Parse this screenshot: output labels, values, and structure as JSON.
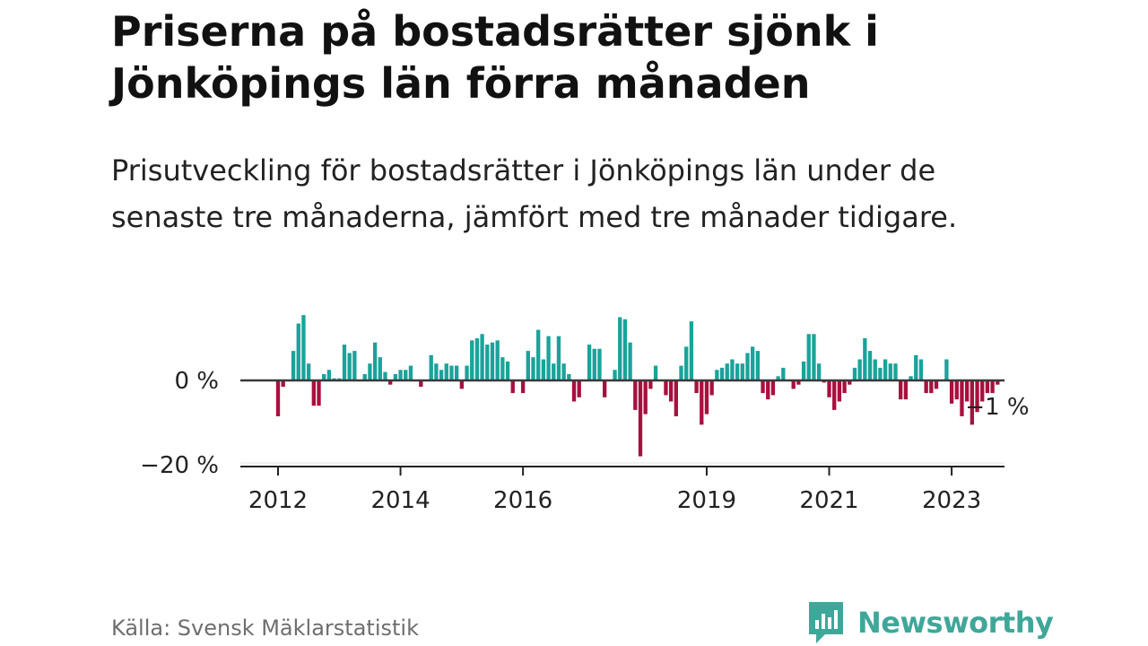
{
  "header": {
    "title": "Priserna på bostadsrätter sjönk i Jönköpings län förra månaden",
    "subtitle": "Prisutveckling för bostadsrätter i Jönköpings län under de senaste tre månaderna, jämfört med tre månader tidigare."
  },
  "footer": {
    "source": "Källa: Svensk Mäklarstatistik",
    "brand": "Newsworthy"
  },
  "colors": {
    "positive": "#1aa39a",
    "negative": "#a8103e",
    "brand": "#3fa79a"
  },
  "chart_data": {
    "type": "bar",
    "title": "",
    "xlabel": "",
    "ylabel": "",
    "ylim": [
      -20,
      15
    ],
    "yticks": [
      0,
      -20
    ],
    "ytick_labels": [
      "0 %",
      "−20 %"
    ],
    "xticks": [
      "2012",
      "2014",
      "2016",
      "2019",
      "2021",
      "2023"
    ],
    "last_value_label": "−1 %",
    "start": "2012-01",
    "values": [
      -8.5,
      -1.5,
      0,
      7,
      13.5,
      15.5,
      4,
      -6,
      -6,
      1.5,
      2.5,
      0.5,
      0.5,
      8.5,
      6.5,
      7,
      0,
      1.5,
      4,
      9,
      5.5,
      2,
      -1,
      1.5,
      2.5,
      2.5,
      3.5,
      0,
      -1.5,
      0,
      6,
      4,
      2.5,
      4,
      3.5,
      3.5,
      -2,
      3.5,
      9.5,
      10,
      11,
      8.5,
      9,
      9.5,
      5.5,
      4.5,
      -3,
      0,
      -3,
      7,
      5.5,
      12,
      5,
      10.5,
      4,
      10.5,
      4,
      1.5,
      -5,
      -4,
      0,
      8.5,
      7.5,
      7.5,
      -4,
      0,
      2.5,
      15,
      14.5,
      9,
      -7,
      -18,
      -8,
      -2,
      3.5,
      0,
      -3.5,
      -5,
      -8.5,
      3.5,
      8,
      14,
      -3,
      -10.5,
      -8,
      -3.5,
      2.5,
      3,
      4,
      5,
      4,
      4,
      6.5,
      8,
      7,
      -3,
      -4.5,
      -3.5,
      1,
      3,
      0,
      -2,
      -1,
      4.5,
      11,
      11,
      4,
      -0.5,
      -4,
      -7,
      -5,
      -3,
      -1,
      3,
      5,
      10,
      7,
      5,
      3,
      5,
      4,
      4,
      -4.5,
      -4.5,
      1,
      6,
      5,
      -3,
      -3,
      -2,
      0,
      5,
      -5.5,
      -4.5,
      -8.5,
      -5,
      -10.5,
      -7.5,
      -5,
      -3,
      -3,
      -1
    ]
  }
}
